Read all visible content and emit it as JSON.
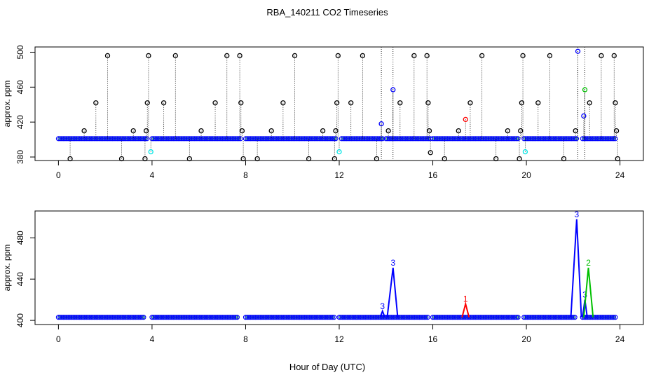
{
  "figure": {
    "title": "RBA_140211  CO2 Timeseries",
    "xlabel": "Hour of Day (UTC)"
  },
  "colors": {
    "black": "#000000",
    "blue": "#0000ff",
    "cyan": "#00e5e5",
    "green": "#00c000",
    "red": "#ff0000"
  },
  "chart_data": [
    {
      "type": "scatter",
      "name": "top-panel",
      "ylabel": "approx. ppm",
      "xlim": [
        -1,
        25
      ],
      "ylim": [
        376,
        506
      ],
      "xticks": [
        0,
        4,
        8,
        12,
        16,
        20,
        24
      ],
      "yticks": [
        380,
        420,
        460,
        500
      ],
      "grid": false,
      "legend": "none",
      "baseline": 401,
      "baseline_segments": [
        [
          0,
          3.8
        ],
        [
          4.0,
          7.8
        ],
        [
          8.0,
          11.9
        ],
        [
          12.1,
          13.9
        ],
        [
          14.0,
          15.9
        ],
        [
          16.0,
          19.7
        ],
        [
          19.9,
          22.2
        ],
        [
          22.4,
          23.8
        ]
      ],
      "gap_markers_x": [
        13.8,
        14.3,
        22.2,
        22.5
      ],
      "series": [
        {
          "color": "black",
          "points": [
            [
              0.5,
              378
            ],
            [
              1.1,
              410
            ],
            [
              1.6,
              442
            ],
            [
              2.1,
              496
            ],
            [
              2.7,
              378
            ],
            [
              3.2,
              410
            ],
            [
              3.7,
              378
            ],
            [
              3.75,
              410
            ],
            [
              3.8,
              442
            ],
            [
              3.85,
              496
            ],
            [
              4.5,
              442
            ],
            [
              5.0,
              496
            ],
            [
              5.6,
              378
            ],
            [
              6.1,
              410
            ],
            [
              6.7,
              442
            ],
            [
              7.2,
              496
            ],
            [
              7.75,
              496
            ],
            [
              7.8,
              442
            ],
            [
              7.85,
              410
            ],
            [
              7.9,
              378
            ],
            [
              8.5,
              378
            ],
            [
              9.1,
              410
            ],
            [
              9.6,
              442
            ],
            [
              10.1,
              496
            ],
            [
              10.7,
              378
            ],
            [
              11.3,
              410
            ],
            [
              11.8,
              378
            ],
            [
              11.85,
              410
            ],
            [
              11.9,
              442
            ],
            [
              11.95,
              496
            ],
            [
              12.5,
              442
            ],
            [
              13.0,
              496
            ],
            [
              13.6,
              378
            ],
            [
              14.1,
              410
            ],
            [
              14.6,
              442
            ],
            [
              15.2,
              496
            ],
            [
              15.75,
              496
            ],
            [
              15.8,
              442
            ],
            [
              15.85,
              410
            ],
            [
              15.9,
              385
            ],
            [
              16.5,
              378
            ],
            [
              17.1,
              410
            ],
            [
              17.6,
              442
            ],
            [
              18.1,
              496
            ],
            [
              18.7,
              378
            ],
            [
              19.2,
              410
            ],
            [
              19.7,
              378
            ],
            [
              19.75,
              410
            ],
            [
              19.8,
              442
            ],
            [
              19.85,
              496
            ],
            [
              20.5,
              442
            ],
            [
              21.0,
              496
            ],
            [
              21.6,
              378
            ],
            [
              22.1,
              410
            ],
            [
              22.7,
              442
            ],
            [
              23.2,
              496
            ],
            [
              23.75,
              496
            ],
            [
              23.8,
              442
            ],
            [
              23.85,
              410
            ],
            [
              23.9,
              378
            ]
          ]
        },
        {
          "color": "blue",
          "points": [
            [
              13.8,
              418
            ],
            [
              14.3,
              457
            ],
            [
              22.2,
              501
            ],
            [
              22.45,
              427
            ]
          ]
        },
        {
          "color": "cyan",
          "points": [
            [
              3.95,
              386
            ],
            [
              12.0,
              386
            ],
            [
              19.95,
              386
            ]
          ]
        },
        {
          "color": "green",
          "points": [
            [
              22.5,
              457
            ]
          ]
        },
        {
          "color": "red",
          "points": [
            [
              17.4,
              423
            ]
          ]
        }
      ]
    },
    {
      "type": "line",
      "name": "bottom-panel",
      "ylabel": "approx. ppm",
      "xlim": [
        -1,
        25
      ],
      "ylim": [
        396,
        506
      ],
      "xticks": [
        0,
        4,
        8,
        12,
        16,
        20,
        24
      ],
      "yticks": [
        400,
        440,
        480
      ],
      "grid": false,
      "legend": "none",
      "baseline": 403,
      "baseline_segments": [
        [
          0,
          3.7
        ],
        [
          4.0,
          7.7
        ],
        [
          8.0,
          11.8
        ],
        [
          12.0,
          15.8
        ],
        [
          16.0,
          19.7
        ],
        [
          19.9,
          22.1
        ],
        [
          22.4,
          23.8
        ]
      ],
      "series": [
        {
          "color": "blue",
          "label": "3",
          "points": [
            [
              13.75,
              403
            ],
            [
              13.85,
              409
            ],
            [
              13.95,
              403
            ]
          ],
          "label_point": [
            13.85,
            411
          ]
        },
        {
          "color": "blue",
          "label": "3",
          "points": [
            [
              14.05,
              403
            ],
            [
              14.3,
              451
            ],
            [
              14.5,
              403
            ]
          ],
          "label_point": [
            14.3,
            453
          ]
        },
        {
          "color": "red",
          "label": "1",
          "points": [
            [
              17.25,
              403
            ],
            [
              17.4,
              416
            ],
            [
              17.55,
              403
            ]
          ],
          "label_point": [
            17.4,
            418
          ]
        },
        {
          "color": "blue",
          "label": "3",
          "points": [
            [
              21.9,
              403
            ],
            [
              22.15,
              498
            ],
            [
              22.35,
              403
            ]
          ],
          "label_point": [
            22.15,
            500
          ]
        },
        {
          "color": "blue",
          "label": "3",
          "points": [
            [
              22.4,
              403
            ],
            [
              22.5,
              420
            ],
            [
              22.6,
              403
            ]
          ],
          "label_point": [
            22.5,
            422
          ]
        },
        {
          "color": "green",
          "label": "2",
          "points": [
            [
              22.45,
              403
            ],
            [
              22.65,
              451
            ],
            [
              22.85,
              403
            ]
          ],
          "label_point": [
            22.65,
            453
          ]
        }
      ]
    }
  ]
}
